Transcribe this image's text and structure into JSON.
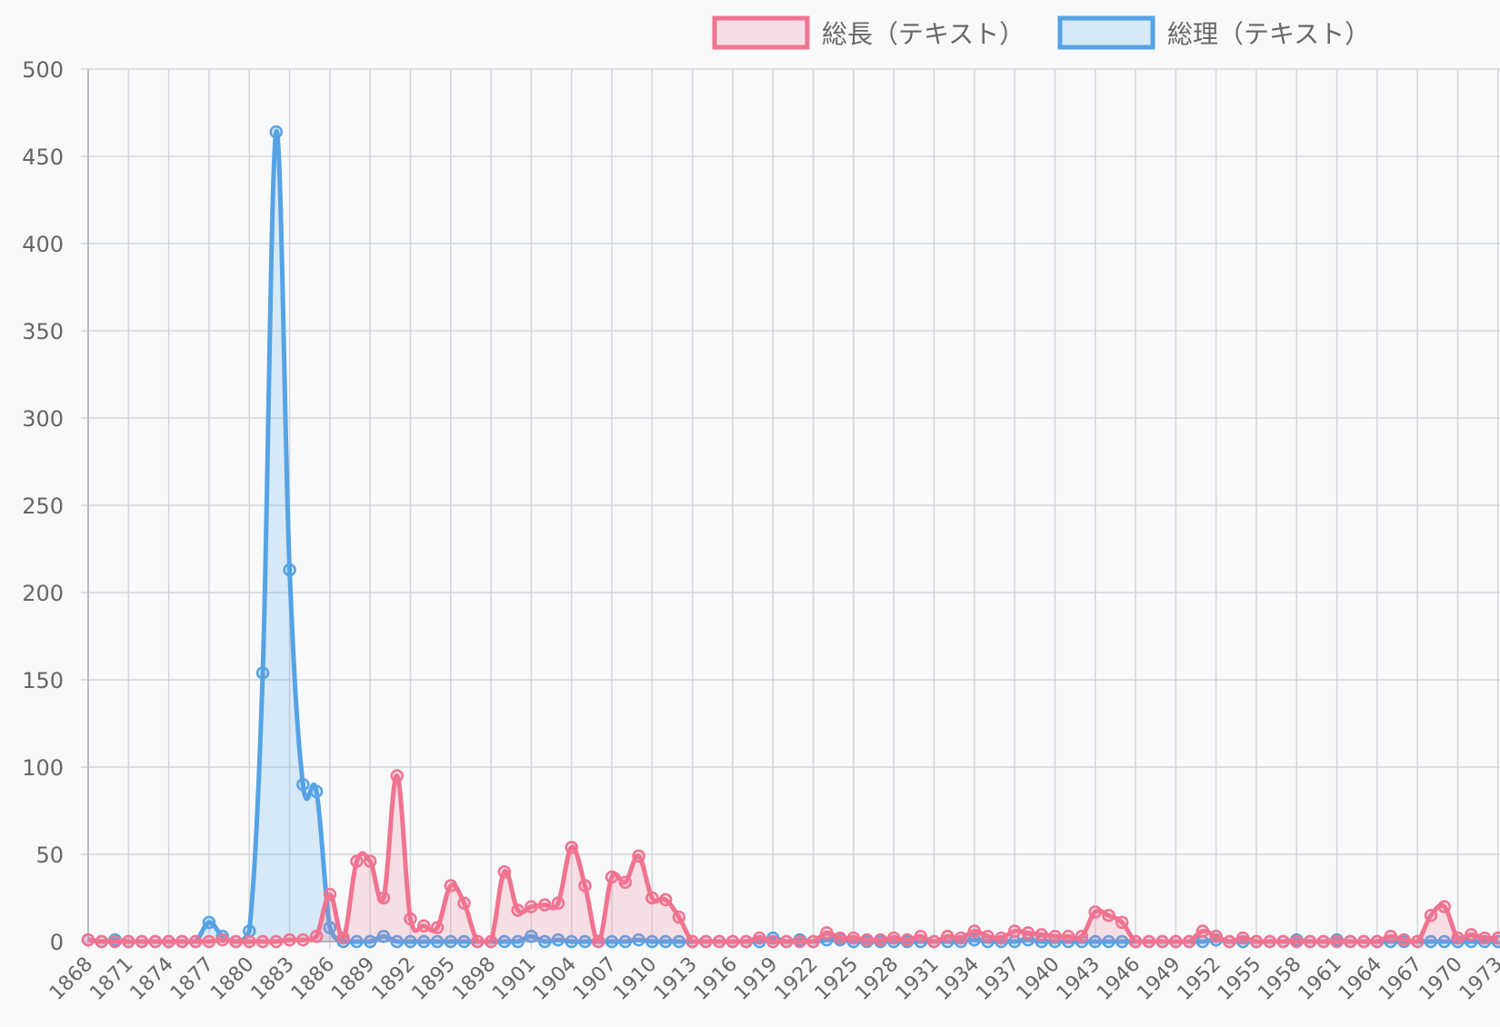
{
  "chart_data": {
    "type": "line",
    "title": "",
    "xlabel": "",
    "ylabel": "",
    "ylim": [
      0,
      500
    ],
    "yticks": [
      0,
      50,
      100,
      150,
      200,
      250,
      300,
      350,
      400,
      450,
      500
    ],
    "grid": true,
    "legend": "top-right",
    "x": [
      1868,
      1869,
      1870,
      1871,
      1872,
      1873,
      1874,
      1875,
      1876,
      1877,
      1878,
      1879,
      1880,
      1881,
      1882,
      1883,
      1884,
      1885,
      1886,
      1887,
      1888,
      1889,
      1890,
      1891,
      1892,
      1893,
      1894,
      1895,
      1896,
      1897,
      1898,
      1899,
      1900,
      1901,
      1902,
      1903,
      1904,
      1905,
      1906,
      1907,
      1908,
      1909,
      1910,
      1911,
      1912,
      1913,
      1914,
      1915,
      1916,
      1917,
      1918,
      1919,
      1920,
      1921,
      1922,
      1923,
      1924,
      1925,
      1926,
      1927,
      1928,
      1929,
      1930,
      1931,
      1932,
      1933,
      1934,
      1935,
      1936,
      1937,
      1938,
      1939,
      1940,
      1941,
      1942,
      1943,
      1944,
      1945,
      1946,
      1947,
      1948,
      1949,
      1950,
      1951,
      1952,
      1953,
      1954,
      1955,
      1956,
      1957,
      1958,
      1959,
      1960,
      1961,
      1962,
      1963,
      1964,
      1965,
      1966,
      1967,
      1968,
      1969,
      1970,
      1971,
      1972,
      1973
    ],
    "x_tick_labels": [
      "1868",
      "1871",
      "1874",
      "1877",
      "1880",
      "1883",
      "1886",
      "1889",
      "1892",
      "1895",
      "1898",
      "1901",
      "1904",
      "1907",
      "1910",
      "1913",
      "1916",
      "1919",
      "1922",
      "1925",
      "1928",
      "1931",
      "1934",
      "1937",
      "1940",
      "1943",
      "1946",
      "1949",
      "1952",
      "1955",
      "1958",
      "1961",
      "1964",
      "1967",
      "1970",
      "1973"
    ],
    "series": [
      {
        "name": "総長（テキスト）",
        "color": "#f07390",
        "fill": "rgba(240,115,144,0.2)",
        "values": [
          1,
          0,
          0,
          0,
          0,
          0,
          0,
          0,
          0,
          0,
          1,
          0,
          0,
          0,
          0,
          1,
          1,
          3,
          27,
          2,
          46,
          46,
          25,
          95,
          13,
          9,
          8,
          32,
          22,
          0,
          0,
          40,
          18,
          20,
          21,
          22,
          54,
          32,
          0,
          37,
          34,
          49,
          25,
          24,
          14,
          0,
          0,
          0,
          0,
          0,
          2,
          0,
          0,
          0,
          0,
          5,
          2,
          2,
          1,
          1,
          2,
          1,
          3,
          0,
          3,
          2,
          6,
          3,
          2,
          6,
          5,
          4,
          3,
          3,
          3,
          17,
          15,
          11,
          0,
          0,
          0,
          0,
          0,
          6,
          3,
          0,
          2,
          0,
          0,
          0,
          0,
          0,
          0,
          0,
          0,
          0,
          0,
          3,
          1,
          0,
          15,
          20,
          2,
          4,
          2,
          2
        ]
      },
      {
        "name": "総理（テキスト）",
        "color": "#55a3e5",
        "fill": "rgba(85,163,229,0.2)",
        "values": [
          1,
          0,
          1,
          0,
          0,
          0,
          0,
          0,
          0,
          11,
          3,
          0,
          6,
          154,
          464,
          213,
          90,
          86,
          8,
          0,
          0,
          0,
          3,
          0,
          0,
          0,
          0,
          0,
          0,
          0,
          0,
          0,
          0,
          3,
          0,
          1,
          0,
          0,
          0,
          0,
          0,
          1,
          0,
          0,
          0,
          0,
          0,
          0,
          0,
          0,
          0,
          2,
          0,
          1,
          0,
          1,
          1,
          0,
          0,
          0,
          0,
          0,
          0,
          0,
          0,
          0,
          1,
          0,
          0,
          0,
          1,
          0,
          0,
          0,
          0,
          0,
          0,
          0,
          0,
          0,
          0,
          0,
          0,
          0,
          1,
          0,
          0,
          0,
          0,
          0,
          1,
          0,
          0,
          1,
          0,
          0,
          0,
          0,
          0,
          0,
          0,
          0,
          0,
          0,
          0,
          0
        ]
      }
    ]
  }
}
